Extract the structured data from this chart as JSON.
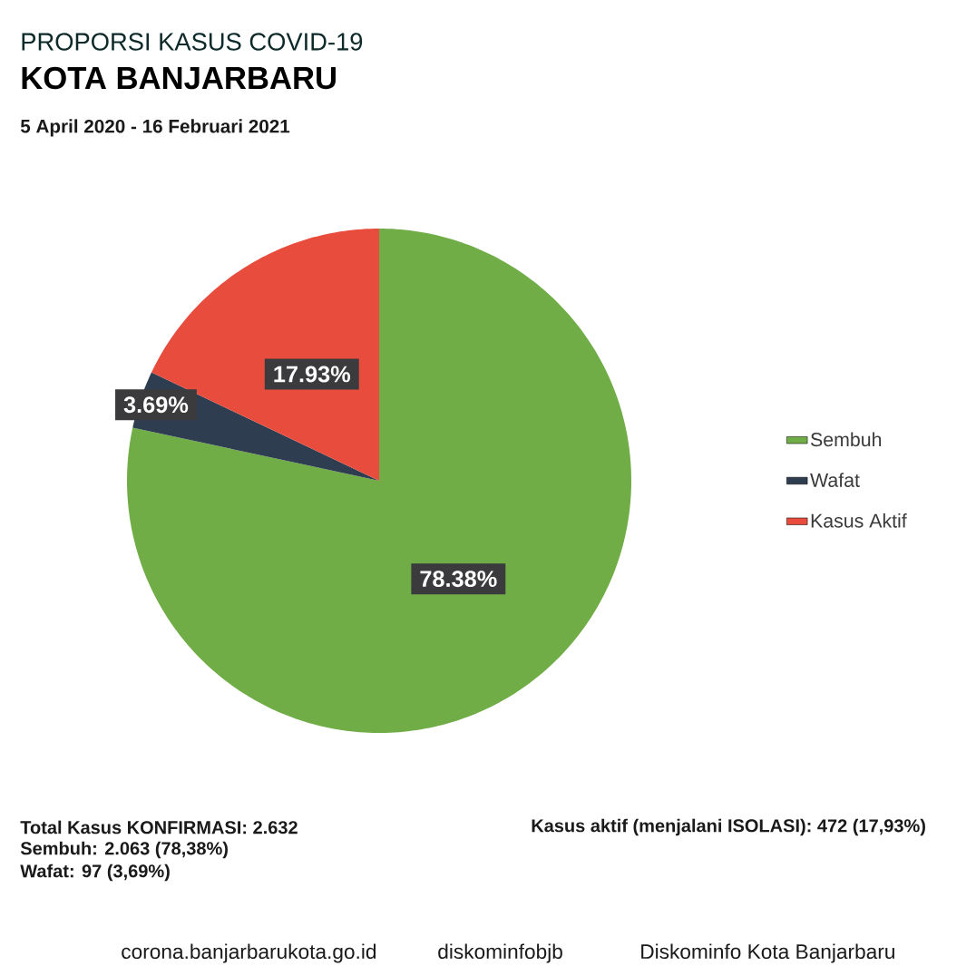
{
  "chart_data": {
    "type": "pie",
    "title": "PROPORSI KASUS COVID-19",
    "subtitle": "KOTA BANJARBARU",
    "categories": [
      "Sembuh",
      "Wafat",
      "Kasus Aktif"
    ],
    "values": [
      78.38,
      3.69,
      17.93
    ],
    "colors": [
      "#70ad47",
      "#2e3d50",
      "#e74c3c"
    ],
    "value_labels": [
      "78.38%",
      "3.69%",
      "17.93%"
    ],
    "legend": "right",
    "annotations": [
      "5 April 2020 - 16 Februari 2021",
      "Total Kasus KONFIRMASI: 2.632",
      "Sembuh: 2.063 (78,38%)",
      "Wafat: 97 (3,69%)",
      "Kasus aktif (menjalani ISOLASI): 472 (17,93%)",
      "corona.banjarbarukota.go.id",
      "diskominfobjb",
      "Diskominfo Kota Banjarbaru"
    ]
  }
}
